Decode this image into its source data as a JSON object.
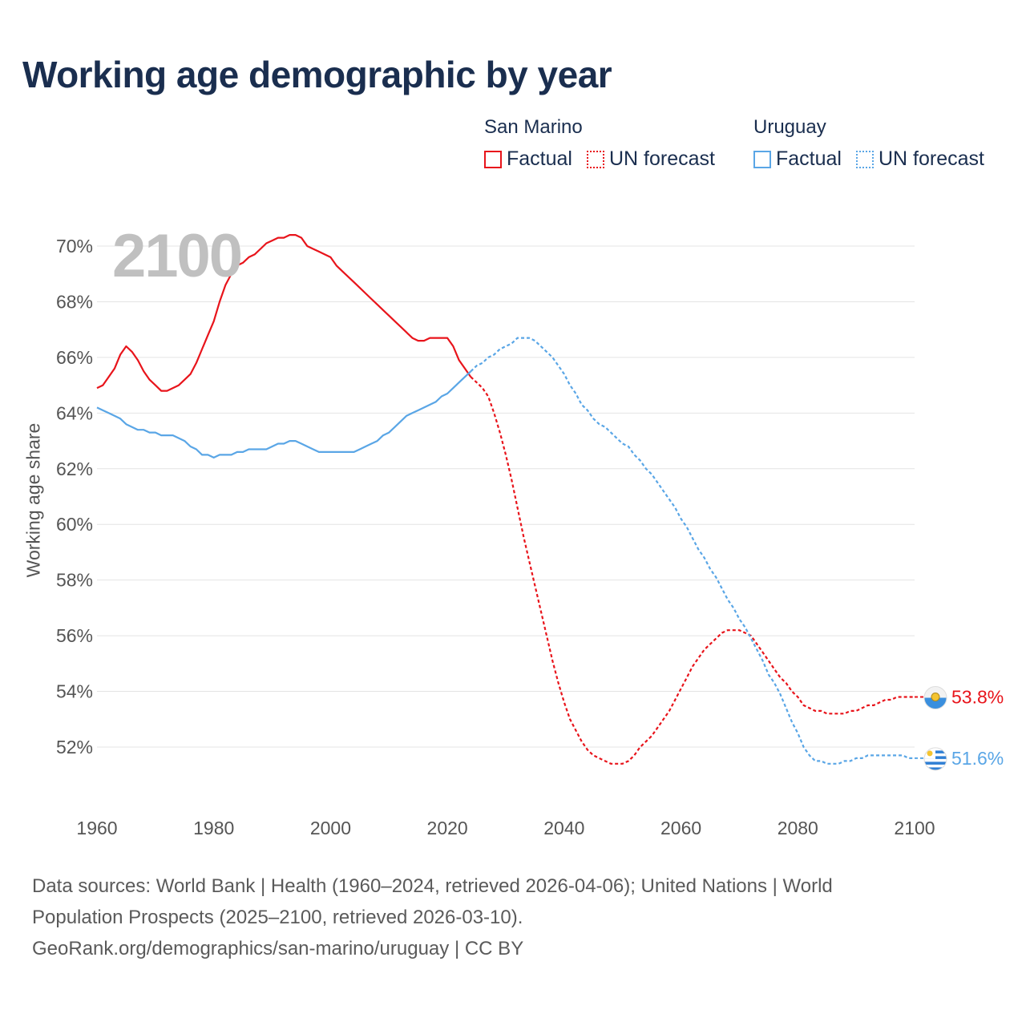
{
  "title": "Working age demographic by year",
  "year_label": "2100",
  "legend": {
    "san_marino": {
      "name": "San Marino",
      "factual": "Factual",
      "forecast": "UN forecast",
      "color": "#e8141b"
    },
    "uruguay": {
      "name": "Uruguay",
      "factual": "Factual",
      "forecast": "UN forecast",
      "color": "#5aa6e6"
    }
  },
  "sources": {
    "line1": "Data sources: World Bank | Health (1960–2024, retrieved 2026-04-06); United Nations | World",
    "line2": "Population Prospects (2025–2100, retrieved 2026-03-10).",
    "line3": "GeoRank.org/demographics/san-marino/uruguay | CC BY"
  },
  "chart_data": {
    "type": "line",
    "ylabel": "Working age share",
    "xlim": [
      1960,
      2100
    ],
    "ylim": [
      50.2,
      70.5
    ],
    "x_ticks": [
      1960,
      1980,
      2000,
      2020,
      2040,
      2060,
      2080,
      2100
    ],
    "x_tick_labels": [
      "1960",
      "1980",
      "2000",
      "2020",
      "2040",
      "2060",
      "2080",
      "2100"
    ],
    "y_ticks": [
      52,
      54,
      56,
      58,
      60,
      62,
      64,
      66,
      68,
      70
    ],
    "y_tick_labels": [
      "52%",
      "54%",
      "56%",
      "58%",
      "60%",
      "62%",
      "64%",
      "66%",
      "68%",
      "70%"
    ],
    "grid": true,
    "forecast_start_year": 2024,
    "series": [
      {
        "name": "San Marino",
        "color": "#e8141b",
        "end_label": "53.8%",
        "points": [
          [
            1960,
            64.9
          ],
          [
            1961,
            65.0
          ],
          [
            1962,
            65.3
          ],
          [
            1963,
            65.6
          ],
          [
            1964,
            66.1
          ],
          [
            1965,
            66.4
          ],
          [
            1966,
            66.2
          ],
          [
            1967,
            65.9
          ],
          [
            1968,
            65.5
          ],
          [
            1969,
            65.2
          ],
          [
            1970,
            65.0
          ],
          [
            1971,
            64.8
          ],
          [
            1972,
            64.8
          ],
          [
            1973,
            64.9
          ],
          [
            1974,
            65.0
          ],
          [
            1975,
            65.2
          ],
          [
            1976,
            65.4
          ],
          [
            1977,
            65.8
          ],
          [
            1978,
            66.3
          ],
          [
            1979,
            66.8
          ],
          [
            1980,
            67.3
          ],
          [
            1981,
            68.0
          ],
          [
            1982,
            68.6
          ],
          [
            1983,
            69.0
          ],
          [
            1984,
            69.3
          ],
          [
            1985,
            69.4
          ],
          [
            1986,
            69.6
          ],
          [
            1987,
            69.7
          ],
          [
            1988,
            69.9
          ],
          [
            1989,
            70.1
          ],
          [
            1990,
            70.2
          ],
          [
            1991,
            70.3
          ],
          [
            1992,
            70.3
          ],
          [
            1993,
            70.4
          ],
          [
            1994,
            70.4
          ],
          [
            1995,
            70.3
          ],
          [
            1996,
            70.0
          ],
          [
            1997,
            69.9
          ],
          [
            1998,
            69.8
          ],
          [
            1999,
            69.7
          ],
          [
            2000,
            69.6
          ],
          [
            2001,
            69.3
          ],
          [
            2002,
            69.1
          ],
          [
            2003,
            68.9
          ],
          [
            2004,
            68.7
          ],
          [
            2005,
            68.5
          ],
          [
            2006,
            68.3
          ],
          [
            2007,
            68.1
          ],
          [
            2008,
            67.9
          ],
          [
            2009,
            67.7
          ],
          [
            2010,
            67.5
          ],
          [
            2011,
            67.3
          ],
          [
            2012,
            67.1
          ],
          [
            2013,
            66.9
          ],
          [
            2014,
            66.7
          ],
          [
            2015,
            66.6
          ],
          [
            2016,
            66.6
          ],
          [
            2017,
            66.7
          ],
          [
            2018,
            66.7
          ],
          [
            2019,
            66.7
          ],
          [
            2020,
            66.7
          ],
          [
            2021,
            66.4
          ],
          [
            2022,
            65.9
          ],
          [
            2023,
            65.6
          ],
          [
            2024,
            65.3
          ],
          [
            2025,
            65.1
          ],
          [
            2026,
            64.9
          ],
          [
            2027,
            64.6
          ],
          [
            2028,
            64.0
          ],
          [
            2029,
            63.3
          ],
          [
            2030,
            62.5
          ],
          [
            2031,
            61.6
          ],
          [
            2032,
            60.6
          ],
          [
            2033,
            59.6
          ],
          [
            2034,
            58.7
          ],
          [
            2035,
            57.8
          ],
          [
            2036,
            56.9
          ],
          [
            2037,
            56.0
          ],
          [
            2038,
            55.1
          ],
          [
            2039,
            54.3
          ],
          [
            2040,
            53.6
          ],
          [
            2041,
            53.0
          ],
          [
            2042,
            52.6
          ],
          [
            2043,
            52.2
          ],
          [
            2044,
            51.9
          ],
          [
            2045,
            51.7
          ],
          [
            2046,
            51.6
          ],
          [
            2047,
            51.5
          ],
          [
            2048,
            51.4
          ],
          [
            2049,
            51.4
          ],
          [
            2050,
            51.4
          ],
          [
            2051,
            51.5
          ],
          [
            2052,
            51.7
          ],
          [
            2053,
            52.0
          ],
          [
            2054,
            52.2
          ],
          [
            2055,
            52.4
          ],
          [
            2056,
            52.7
          ],
          [
            2057,
            53.0
          ],
          [
            2058,
            53.3
          ],
          [
            2059,
            53.7
          ],
          [
            2060,
            54.1
          ],
          [
            2061,
            54.5
          ],
          [
            2062,
            54.9
          ],
          [
            2063,
            55.2
          ],
          [
            2064,
            55.5
          ],
          [
            2065,
            55.7
          ],
          [
            2066,
            55.9
          ],
          [
            2067,
            56.1
          ],
          [
            2068,
            56.2
          ],
          [
            2069,
            56.2
          ],
          [
            2070,
            56.2
          ],
          [
            2071,
            56.1
          ],
          [
            2072,
            56.0
          ],
          [
            2073,
            55.7
          ],
          [
            2074,
            55.4
          ],
          [
            2075,
            55.1
          ],
          [
            2076,
            54.8
          ],
          [
            2077,
            54.5
          ],
          [
            2078,
            54.3
          ],
          [
            2079,
            54.0
          ],
          [
            2080,
            53.8
          ],
          [
            2081,
            53.5
          ],
          [
            2082,
            53.4
          ],
          [
            2083,
            53.3
          ],
          [
            2084,
            53.3
          ],
          [
            2085,
            53.2
          ],
          [
            2086,
            53.2
          ],
          [
            2087,
            53.2
          ],
          [
            2088,
            53.2
          ],
          [
            2089,
            53.3
          ],
          [
            2090,
            53.3
          ],
          [
            2091,
            53.4
          ],
          [
            2092,
            53.5
          ],
          [
            2093,
            53.5
          ],
          [
            2094,
            53.6
          ],
          [
            2095,
            53.7
          ],
          [
            2096,
            53.7
          ],
          [
            2097,
            53.8
          ],
          [
            2098,
            53.8
          ],
          [
            2099,
            53.8
          ],
          [
            2100,
            53.8
          ]
        ]
      },
      {
        "name": "Uruguay",
        "color": "#5aa6e6",
        "end_label": "51.6%",
        "points": [
          [
            1960,
            64.2
          ],
          [
            1961,
            64.1
          ],
          [
            1962,
            64.0
          ],
          [
            1963,
            63.9
          ],
          [
            1964,
            63.8
          ],
          [
            1965,
            63.6
          ],
          [
            1966,
            63.5
          ],
          [
            1967,
            63.4
          ],
          [
            1968,
            63.4
          ],
          [
            1969,
            63.3
          ],
          [
            1970,
            63.3
          ],
          [
            1971,
            63.2
          ],
          [
            1972,
            63.2
          ],
          [
            1973,
            63.2
          ],
          [
            1974,
            63.1
          ],
          [
            1975,
            63.0
          ],
          [
            1976,
            62.8
          ],
          [
            1977,
            62.7
          ],
          [
            1978,
            62.5
          ],
          [
            1979,
            62.5
          ],
          [
            1980,
            62.4
          ],
          [
            1981,
            62.5
          ],
          [
            1982,
            62.5
          ],
          [
            1983,
            62.5
          ],
          [
            1984,
            62.6
          ],
          [
            1985,
            62.6
          ],
          [
            1986,
            62.7
          ],
          [
            1987,
            62.7
          ],
          [
            1988,
            62.7
          ],
          [
            1989,
            62.7
          ],
          [
            1990,
            62.8
          ],
          [
            1991,
            62.9
          ],
          [
            1992,
            62.9
          ],
          [
            1993,
            63.0
          ],
          [
            1994,
            63.0
          ],
          [
            1995,
            62.9
          ],
          [
            1996,
            62.8
          ],
          [
            1997,
            62.7
          ],
          [
            1998,
            62.6
          ],
          [
            1999,
            62.6
          ],
          [
            2000,
            62.6
          ],
          [
            2001,
            62.6
          ],
          [
            2002,
            62.6
          ],
          [
            2003,
            62.6
          ],
          [
            2004,
            62.6
          ],
          [
            2005,
            62.7
          ],
          [
            2006,
            62.8
          ],
          [
            2007,
            62.9
          ],
          [
            2008,
            63.0
          ],
          [
            2009,
            63.2
          ],
          [
            2010,
            63.3
          ],
          [
            2011,
            63.5
          ],
          [
            2012,
            63.7
          ],
          [
            2013,
            63.9
          ],
          [
            2014,
            64.0
          ],
          [
            2015,
            64.1
          ],
          [
            2016,
            64.2
          ],
          [
            2017,
            64.3
          ],
          [
            2018,
            64.4
          ],
          [
            2019,
            64.6
          ],
          [
            2020,
            64.7
          ],
          [
            2021,
            64.9
          ],
          [
            2022,
            65.1
          ],
          [
            2023,
            65.3
          ],
          [
            2024,
            65.5
          ],
          [
            2025,
            65.7
          ],
          [
            2026,
            65.8
          ],
          [
            2027,
            66.0
          ],
          [
            2028,
            66.1
          ],
          [
            2029,
            66.3
          ],
          [
            2030,
            66.4
          ],
          [
            2031,
            66.5
          ],
          [
            2032,
            66.7
          ],
          [
            2033,
            66.7
          ],
          [
            2034,
            66.7
          ],
          [
            2035,
            66.6
          ],
          [
            2036,
            66.4
          ],
          [
            2037,
            66.2
          ],
          [
            2038,
            66.0
          ],
          [
            2039,
            65.7
          ],
          [
            2040,
            65.4
          ],
          [
            2041,
            65.0
          ],
          [
            2042,
            64.7
          ],
          [
            2043,
            64.3
          ],
          [
            2044,
            64.1
          ],
          [
            2045,
            63.8
          ],
          [
            2046,
            63.6
          ],
          [
            2047,
            63.5
          ],
          [
            2048,
            63.3
          ],
          [
            2049,
            63.1
          ],
          [
            2050,
            62.9
          ],
          [
            2051,
            62.8
          ],
          [
            2052,
            62.5
          ],
          [
            2053,
            62.3
          ],
          [
            2054,
            62.0
          ],
          [
            2055,
            61.8
          ],
          [
            2056,
            61.5
          ],
          [
            2057,
            61.2
          ],
          [
            2058,
            60.9
          ],
          [
            2059,
            60.6
          ],
          [
            2060,
            60.2
          ],
          [
            2061,
            59.9
          ],
          [
            2062,
            59.5
          ],
          [
            2063,
            59.1
          ],
          [
            2064,
            58.8
          ],
          [
            2065,
            58.4
          ],
          [
            2066,
            58.1
          ],
          [
            2067,
            57.7
          ],
          [
            2068,
            57.3
          ],
          [
            2069,
            57.0
          ],
          [
            2070,
            56.6
          ],
          [
            2071,
            56.3
          ],
          [
            2072,
            55.9
          ],
          [
            2073,
            55.5
          ],
          [
            2074,
            55.1
          ],
          [
            2075,
            54.6
          ],
          [
            2076,
            54.3
          ],
          [
            2077,
            53.9
          ],
          [
            2078,
            53.4
          ],
          [
            2079,
            52.9
          ],
          [
            2080,
            52.5
          ],
          [
            2081,
            52.0
          ],
          [
            2082,
            51.7
          ],
          [
            2083,
            51.5
          ],
          [
            2084,
            51.5
          ],
          [
            2085,
            51.4
          ],
          [
            2086,
            51.4
          ],
          [
            2087,
            51.4
          ],
          [
            2088,
            51.5
          ],
          [
            2089,
            51.5
          ],
          [
            2090,
            51.6
          ],
          [
            2091,
            51.6
          ],
          [
            2092,
            51.7
          ],
          [
            2093,
            51.7
          ],
          [
            2094,
            51.7
          ],
          [
            2095,
            51.7
          ],
          [
            2096,
            51.7
          ],
          [
            2097,
            51.7
          ],
          [
            2098,
            51.7
          ],
          [
            2099,
            51.6
          ],
          [
            2100,
            51.6
          ]
        ]
      }
    ]
  }
}
